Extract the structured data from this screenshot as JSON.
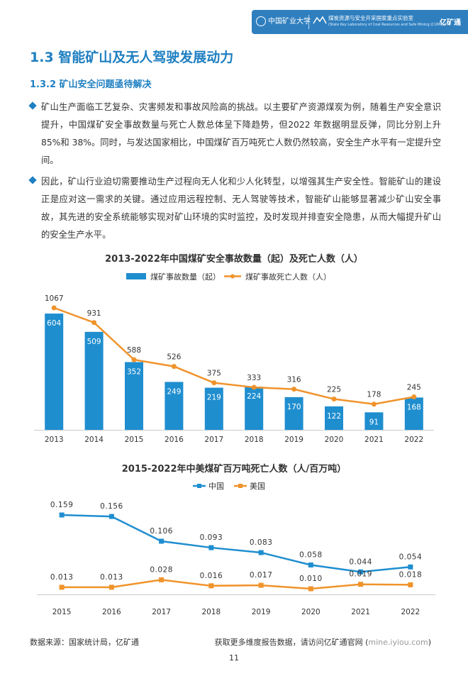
{
  "header": {
    "university_name": "中国矿业大学",
    "lab_name": "煤炭资源与安全开采国家重点实验室",
    "lab_name_en": "(State Key Laboratory of Coal Resources and Safe Mining (CUMT))",
    "brand": "亿矿通",
    "band_color": "#2f7fbf"
  },
  "section_title": "1.3 智能矿山及无人驾驶发展动力",
  "subsection_title": "1.3.2 矿山安全问题亟待解决",
  "bullets": [
    "矿山生产面临工艺复杂、灾害频发和事故风险高的挑战。以主要矿产资源煤炭为例，随着生产安全意识提升，中国煤矿安全事故数量与死亡人数总体呈下降趋势，但2022 年数据明显反弹，同比分别上升 85%和 38%。同时，与发达国家相比，中国煤矿百万吨死亡人数仍然较高，安全生产水平有一定提升空间。",
    "因此，矿山行业迫切需要推动生产过程向无人化和少人化转型，以增强其生产安全性。智能矿山的建设正是应对这一需求的关键。通过应用远程控制、无人驾驶等技术，智能矿山能够显著减少矿山安全事故，其先进的安全系统能够实现对矿山环境的实时监控，及时发现并排查安全隐患，从而大幅提升矿山的安全生产水平。"
  ],
  "chart_data": [
    {
      "type": "bar+line",
      "title": "2013-2022年中国煤矿安全事故数量（起）及死亡人数（人）",
      "categories": [
        "2013",
        "2014",
        "2015",
        "2016",
        "2017",
        "2018",
        "2019",
        "2020",
        "2021",
        "2022"
      ],
      "series": [
        {
          "name": "煤矿事故数量（起）",
          "type": "bar",
          "color": "#1f8ecf",
          "values": [
            604,
            509,
            352,
            249,
            219,
            224,
            170,
            122,
            91,
            168
          ]
        },
        {
          "name": "煤矿事故死亡人数（人）",
          "type": "line",
          "color": "#f0932b",
          "values": [
            1067,
            931,
            588,
            526,
            375,
            333,
            316,
            225,
            178,
            245
          ]
        }
      ],
      "legend": "top",
      "grid": false
    },
    {
      "type": "line",
      "title": "2015-2022年中美煤矿百万吨死亡人数（人/百万吨）",
      "categories": [
        "2015",
        "2016",
        "2017",
        "2018",
        "2019",
        "2020",
        "2021",
        "2022"
      ],
      "series": [
        {
          "name": "中国",
          "color": "#1f8ecf",
          "values": [
            0.159,
            0.156,
            0.106,
            0.093,
            0.083,
            0.058,
            0.044,
            0.054
          ],
          "labels": [
            "0.159",
            "0.156",
            "0.106",
            "0.093",
            "0.083",
            "0.058",
            "0.044",
            "0.054"
          ]
        },
        {
          "name": "美国",
          "color": "#f0932b",
          "values": [
            0.013,
            0.013,
            0.028,
            0.016,
            0.017,
            0.01,
            0.019,
            0.018
          ],
          "labels": [
            "0.013",
            "0.013",
            "0.028",
            "0.016",
            "0.017",
            "0.010",
            "0.019",
            "0.018"
          ]
        }
      ],
      "legend": "top",
      "grid": false
    }
  ],
  "footer": {
    "source": "数据来源：国家统计局，亿矿通",
    "more_info_prefix": "获取更多维度报告数据，请访问亿矿通官网 (",
    "more_info_url": "mine.iyiou.com",
    "more_info_suffix": ")",
    "page_number": "11"
  }
}
